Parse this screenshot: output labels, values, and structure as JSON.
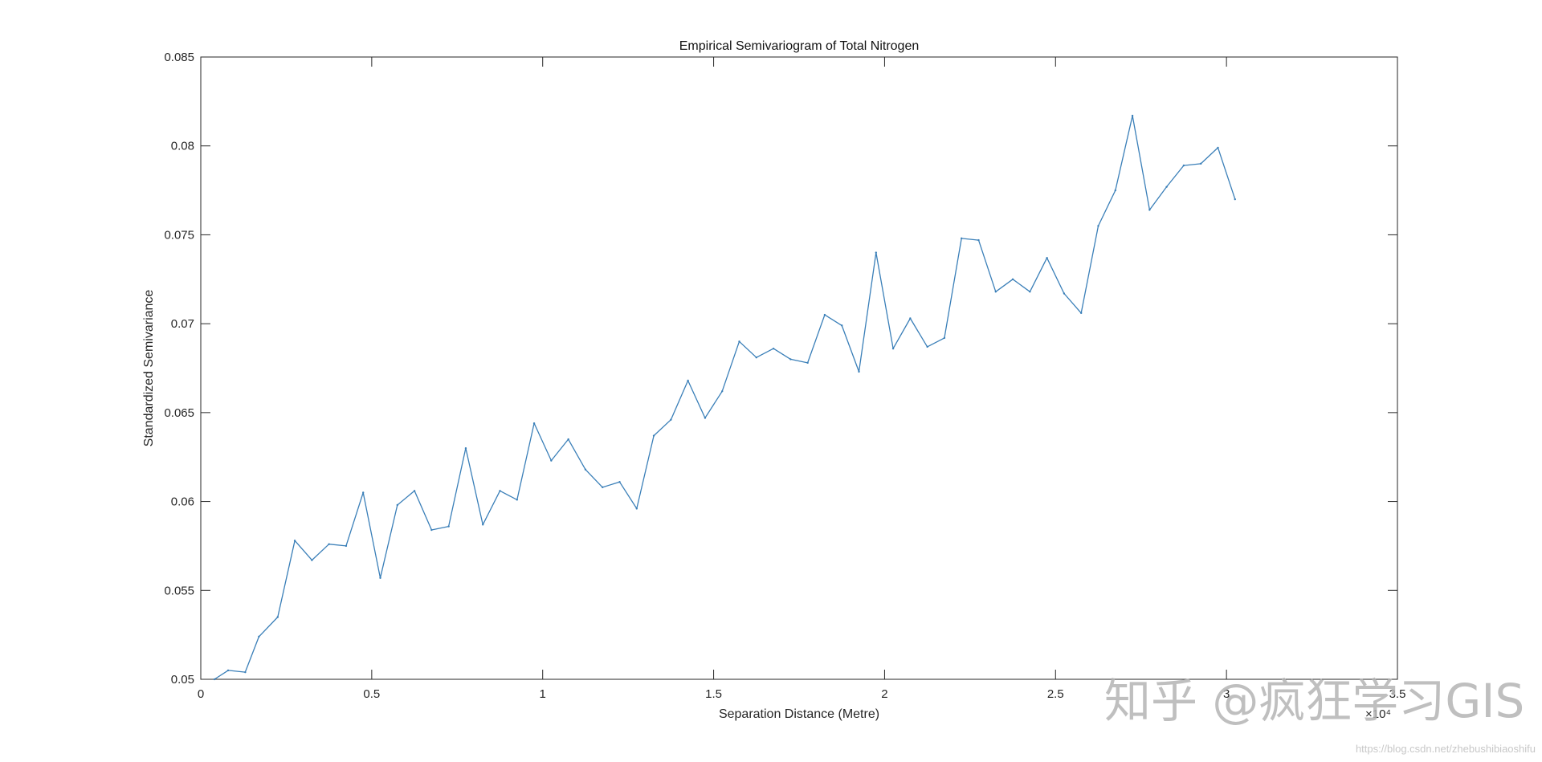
{
  "chart_data": {
    "type": "line",
    "title": "Empirical Semivariogram of Total Nitrogen",
    "xlabel": "Separation Distance (Metre)",
    "ylabel": "Standardized Semivariance",
    "xlim": [
      0,
      3.5
    ],
    "ylim": [
      0.05,
      0.085
    ],
    "x_exponent_label": "×10⁴",
    "x_ticks": [
      0,
      0.5,
      1,
      1.5,
      2,
      2.5,
      3,
      3.5
    ],
    "x_tick_labels": [
      "0",
      "0.5",
      "1",
      "1.5",
      "2",
      "2.5",
      "3",
      "3.5"
    ],
    "y_ticks": [
      0.05,
      0.055,
      0.06,
      0.065,
      0.07,
      0.075,
      0.08,
      0.085
    ],
    "y_tick_labels": [
      "0.05",
      "0.055",
      "0.06",
      "0.065",
      "0.07",
      "0.075",
      "0.08",
      "0.085"
    ],
    "grid": false,
    "line_color": "#3a7fb8",
    "series": [
      {
        "x": [
          0.04,
          0.08,
          0.13,
          0.17,
          0.225,
          0.275,
          0.325,
          0.375,
          0.425,
          0.475,
          0.525,
          0.575,
          0.625,
          0.675,
          0.725,
          0.775,
          0.825,
          0.875,
          0.925,
          0.975,
          1.025,
          1.075,
          1.125,
          1.175,
          1.225,
          1.275,
          1.325,
          1.375,
          1.425,
          1.475,
          1.525,
          1.575,
          1.625,
          1.675,
          1.725,
          1.775,
          1.825,
          1.875,
          1.925,
          1.975,
          2.025,
          2.075,
          2.125,
          2.175,
          2.225,
          2.275,
          2.325,
          2.375,
          2.425,
          2.475,
          2.525,
          2.575,
          2.625,
          2.675,
          2.725,
          2.775,
          2.825,
          2.875,
          2.925,
          2.975,
          3.025
        ],
        "y": [
          0.05,
          0.0505,
          0.0504,
          0.0524,
          0.0535,
          0.0578,
          0.0567,
          0.0576,
          0.0575,
          0.0605,
          0.0557,
          0.0598,
          0.0606,
          0.0584,
          0.0586,
          0.063,
          0.0587,
          0.0606,
          0.0601,
          0.0644,
          0.0623,
          0.0635,
          0.0618,
          0.0608,
          0.0611,
          0.0596,
          0.0637,
          0.0646,
          0.0668,
          0.0647,
          0.0662,
          0.069,
          0.0681,
          0.0686,
          0.068,
          0.0678,
          0.0705,
          0.0699,
          0.0673,
          0.074,
          0.0686,
          0.0703,
          0.0687,
          0.0692,
          0.0748,
          0.0747,
          0.0718,
          0.0725,
          0.0718,
          0.0737,
          0.0717,
          0.0706,
          0.0755,
          0.0775,
          0.0817,
          0.0764,
          0.0777,
          0.0789,
          0.079,
          0.0799,
          0.077
        ]
      }
    ]
  },
  "watermark": {
    "text": "知乎 @疯狂学习GIS",
    "url": "https://blog.csdn.net/zhebushibiaoshifu"
  }
}
